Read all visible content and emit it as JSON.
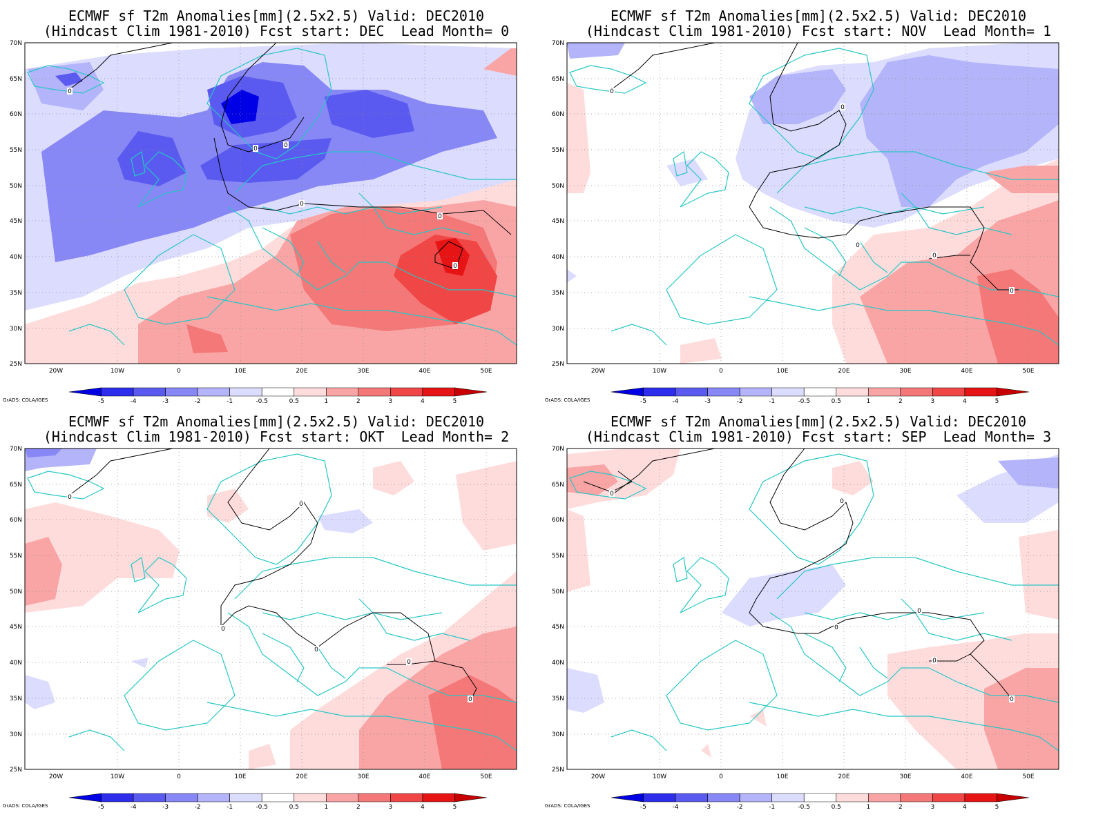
{
  "credit": "GrADS: COLA/IGES",
  "colorbar": {
    "labels": [
      "-5",
      "-4",
      "-3",
      "-2",
      "-1",
      "-0.5",
      "0.5",
      "1",
      "2",
      "3",
      "4",
      "5"
    ],
    "colors": [
      "#0000e6",
      "#2d2deb",
      "#5a5af0",
      "#8787f5",
      "#b4b4fa",
      "#dcdcff",
      "#ffffff",
      "#ffdcdc",
      "#faa5a5",
      "#f57878",
      "#f04646",
      "#e61414",
      "#c80000"
    ]
  },
  "axes": {
    "lon_labels": [
      "20W",
      "10W",
      "0",
      "10E",
      "20E",
      "30E",
      "40E",
      "50E"
    ],
    "lat_labels": [
      "70N",
      "65N",
      "60N",
      "55N",
      "50N",
      "45N",
      "40N",
      "35N",
      "30N",
      "25N"
    ]
  },
  "contour_label": "0",
  "panels": [
    {
      "title1": "ECMWF sf T2m Anomalies[mm](2.5x2.5) Valid: DEC2010",
      "title2": "(Hindcast Clim 1981-2010) Fcst start: DEC  Lead Month= 0"
    },
    {
      "title1": "ECMWF sf T2m Anomalies[mm](2.5x2.5) Valid: DEC2010",
      "title2": "(Hindcast Clim 1981-2010) Fcst start: NOV  Lead Month= 1"
    },
    {
      "title1": "ECMWF sf T2m Anomalies[mm](2.5x2.5) Valid: DEC2010",
      "title2": "(Hindcast Clim 1981-2010) Fcst start: OKT  Lead Month= 2"
    },
    {
      "title1": "ECMWF sf T2m Anomalies[mm](2.5x2.5) Valid: DEC2010",
      "title2": "(Hindcast Clim 1981-2010) Fcst start: SEP  Lead Month= 3"
    }
  ]
}
